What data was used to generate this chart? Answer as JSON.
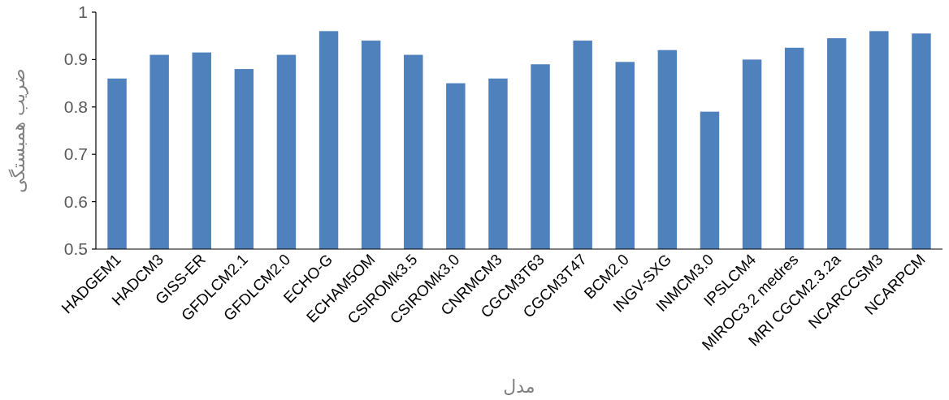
{
  "chart_data": {
    "type": "bar",
    "xlabel": "مدل",
    "ylabel": "ضریب همبستگی",
    "categories": [
      "HADGEM1",
      "HADCM3",
      "GISS-ER",
      "GFDLCM2.1",
      "GFDLCM2.0",
      "ECHO-G",
      "ECHAM5OM",
      "CSIROMk3.5",
      "CSIROMk3.0",
      "CNRMCM3",
      "CGCM3T63",
      "CGCM3T47",
      "BCM2.0",
      "INGV-SXG",
      "INMCM3.0",
      "IPSLCM4",
      "MIROC3.2 medres",
      "MRI CGCM2.3.2a",
      "NCARCCSM3",
      "NCARPCM"
    ],
    "values": [
      0.86,
      0.91,
      0.915,
      0.88,
      0.91,
      0.96,
      0.94,
      0.91,
      0.85,
      0.86,
      0.89,
      0.94,
      0.895,
      0.92,
      0.79,
      0.9,
      0.925,
      0.945,
      0.96,
      0.955
    ],
    "color": "#4f81bd",
    "ylim": [
      0.5,
      1
    ],
    "yticks": [
      0.5,
      0.6,
      0.7,
      0.8,
      0.9,
      1
    ],
    "grid": false
  }
}
